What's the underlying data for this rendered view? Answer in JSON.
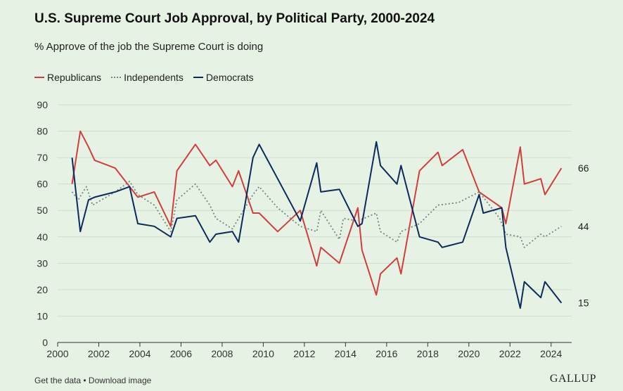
{
  "header": {
    "title": "U.S. Supreme Court Job Approval, by Political Party, 2000-2024",
    "subtitle": "% Approve of the job the Supreme Court is doing"
  },
  "footer": {
    "get_data": "Get the data",
    "separator": " • ",
    "download": "Download image",
    "brand": "GALLUP"
  },
  "colors": {
    "background": "#e6f2e3",
    "republicans": "#d43d3f",
    "independents": "#6f8a80",
    "democrats": "#0d2a5c",
    "grid": "#cfdccb"
  },
  "chart_data": {
    "type": "line",
    "title": "U.S. Supreme Court Job Approval, by Political Party, 2000-2024",
    "subtitle": "% Approve of the job the Supreme Court is doing",
    "xlabel": "",
    "ylabel": "",
    "xlim": [
      2000,
      2025
    ],
    "ylim": [
      0,
      90
    ],
    "x_ticks": [
      2000,
      2002,
      2004,
      2006,
      2008,
      2010,
      2012,
      2014,
      2016,
      2018,
      2020,
      2022,
      2024
    ],
    "y_ticks": [
      0,
      10,
      20,
      30,
      40,
      50,
      60,
      70,
      80,
      90
    ],
    "grid": true,
    "legend_position": "top-left",
    "end_labels": [
      "66",
      "44",
      "15"
    ],
    "series": [
      {
        "name": "Republicans",
        "style": "solid",
        "x": [
          2000.7,
          2001.1,
          2001.5,
          2001.8,
          2002.8,
          2003.5,
          2003.9,
          2004.7,
          2005.5,
          2005.8,
          2006.7,
          2007.4,
          2007.7,
          2008.5,
          2008.8,
          2009.5,
          2009.8,
          2010.7,
          2011.8,
          2012.6,
          2012.8,
          2013.7,
          2014.6,
          2014.8,
          2015.5,
          2015.7,
          2016.5,
          2016.7,
          2017.6,
          2018.5,
          2018.7,
          2019.7,
          2020.5,
          2021.6,
          2021.8,
          2022.5,
          2022.7,
          2023.5,
          2023.7,
          2024.5
        ],
        "y": [
          60,
          80,
          74,
          69,
          66,
          59,
          55,
          57,
          44,
          65,
          75,
          67,
          69,
          59,
          65,
          49,
          49,
          42,
          50,
          29,
          36,
          30,
          51,
          35,
          18,
          26,
          32,
          26,
          65,
          72,
          67,
          73,
          57,
          51,
          45,
          74,
          60,
          62,
          56,
          66
        ]
      },
      {
        "name": "Independents",
        "style": "dotted",
        "x": [
          2000.7,
          2001.0,
          2001.4,
          2001.7,
          2002.8,
          2003.5,
          2003.9,
          2004.7,
          2005.5,
          2005.8,
          2006.7,
          2007.4,
          2007.7,
          2008.5,
          2008.8,
          2009.5,
          2009.8,
          2010.7,
          2011.8,
          2012.6,
          2012.8,
          2013.7,
          2013.9,
          2014.6,
          2015.5,
          2015.7,
          2016.5,
          2016.7,
          2017.6,
          2018.5,
          2019.5,
          2020.5,
          2021.5,
          2021.8,
          2022.5,
          2022.7,
          2023.5,
          2023.7,
          2024.5
        ],
        "y": [
          57,
          54,
          59,
          52,
          57,
          61,
          56,
          52,
          42,
          54,
          60,
          52,
          47,
          43,
          47,
          56,
          59,
          51,
          44,
          42,
          50,
          39,
          47,
          46,
          49,
          42,
          38,
          42,
          45,
          52,
          53,
          57,
          47,
          41,
          40,
          36,
          41,
          40,
          44
        ]
      },
      {
        "name": "Democrats",
        "style": "solid",
        "x": [
          2000.7,
          2001.1,
          2001.5,
          2001.8,
          2002.8,
          2003.5,
          2003.9,
          2004.7,
          2005.5,
          2005.8,
          2006.7,
          2007.4,
          2007.7,
          2008.5,
          2008.8,
          2009.5,
          2009.8,
          2010.7,
          2011.8,
          2012.6,
          2012.8,
          2013.7,
          2014.6,
          2014.8,
          2015.5,
          2015.7,
          2016.5,
          2016.7,
          2017.6,
          2018.5,
          2018.7,
          2019.7,
          2020.5,
          2020.7,
          2021.6,
          2021.8,
          2022.5,
          2022.7,
          2023.5,
          2023.7,
          2024.5
        ],
        "y": [
          70,
          42,
          54,
          55,
          57,
          59,
          45,
          44,
          40,
          47,
          48,
          38,
          41,
          42,
          38,
          70,
          75,
          62,
          46,
          68,
          57,
          58,
          44,
          45,
          76,
          67,
          60,
          67,
          40,
          38,
          36,
          38,
          56,
          49,
          51,
          36,
          13,
          23,
          17,
          23,
          15
        ]
      }
    ]
  }
}
